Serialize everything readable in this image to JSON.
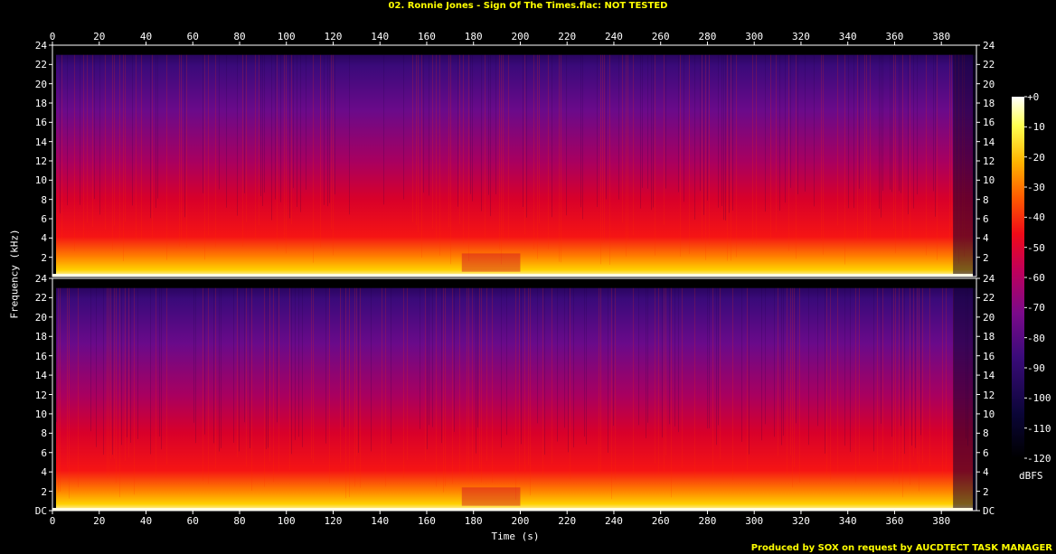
{
  "title": "02. Ronnie Jones - Sign Of The Times.flac: NOT TESTED",
  "footer": "Produced by SOX on request by AUCDTECT TASK MANAGER",
  "chart_data": {
    "type": "heatmap",
    "title": "02. Ronnie Jones - Sign Of The Times.flac: NOT TESTED",
    "xlabel": "Time (s)",
    "ylabel": "Frequency (kHz)",
    "colorbar_label": "dBFS",
    "xlim": [
      0,
      395
    ],
    "ylim": [
      0,
      24
    ],
    "channels": 2,
    "x_ticks": [
      0,
      20,
      40,
      60,
      80,
      100,
      120,
      140,
      160,
      180,
      200,
      220,
      240,
      260,
      280,
      300,
      320,
      340,
      360,
      380
    ],
    "y_ticks_labels": [
      "DC",
      "2",
      "4",
      "6",
      "8",
      "10",
      "12",
      "14",
      "16",
      "18",
      "20",
      "22",
      "24"
    ],
    "colorbar_ticks": [
      "+0",
      "-10",
      "-20",
      "-30",
      "-40",
      "-50",
      "-60",
      "-70",
      "-80",
      "-90",
      "-100",
      "-110",
      "-120"
    ],
    "colorbar_range": [
      -120,
      0
    ],
    "cutoff_khz": 23.0,
    "audio_end_s": 395
  }
}
